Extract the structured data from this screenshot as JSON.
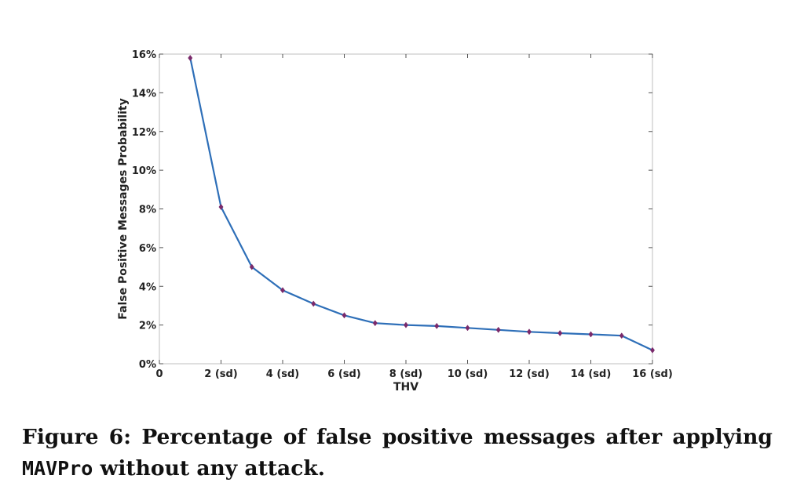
{
  "chart_data": {
    "type": "line",
    "xlabel": "THV",
    "ylabel": "False Positive Messages Probability",
    "xlim": [
      0,
      16
    ],
    "ylim": [
      0,
      16
    ],
    "x_ticks": [
      {
        "value": 0,
        "label": "0"
      },
      {
        "value": 2,
        "label": "2 (sd)"
      },
      {
        "value": 4,
        "label": "4 (sd)"
      },
      {
        "value": 6,
        "label": "6 (sd)"
      },
      {
        "value": 8,
        "label": "8 (sd)"
      },
      {
        "value": 10,
        "label": "10 (sd)"
      },
      {
        "value": 12,
        "label": "12 (sd)"
      },
      {
        "value": 14,
        "label": "14 (sd)"
      },
      {
        "value": 16,
        "label": "16 (sd)"
      }
    ],
    "y_ticks": [
      {
        "value": 0,
        "label": "0%"
      },
      {
        "value": 2,
        "label": "2%"
      },
      {
        "value": 4,
        "label": "4%"
      },
      {
        "value": 6,
        "label": "6%"
      },
      {
        "value": 8,
        "label": "8%"
      },
      {
        "value": 10,
        "label": "10%"
      },
      {
        "value": 12,
        "label": "12%"
      },
      {
        "value": 14,
        "label": "14%"
      },
      {
        "value": 16,
        "label": "16%"
      }
    ],
    "grid": false,
    "series": [
      {
        "x": [
          1,
          2,
          3,
          4,
          5,
          6,
          7,
          8,
          9,
          10,
          11,
          12,
          13,
          14,
          15,
          16
        ],
        "y": [
          15.8,
          8.1,
          5.0,
          3.8,
          3.1,
          2.5,
          2.1,
          2.0,
          1.95,
          1.85,
          1.75,
          1.65,
          1.58,
          1.52,
          1.45,
          0.7
        ],
        "line_color": "#2e6fb8",
        "marker_color": "#7a2a6b",
        "marker": "diamond"
      }
    ]
  },
  "caption": {
    "line1_words": [
      "Figure",
      "6:",
      "Percentage",
      "of",
      "false",
      "positive",
      "messages",
      "after",
      "applying"
    ],
    "code": "MAVPro",
    "line2_rest": " without any attack."
  }
}
